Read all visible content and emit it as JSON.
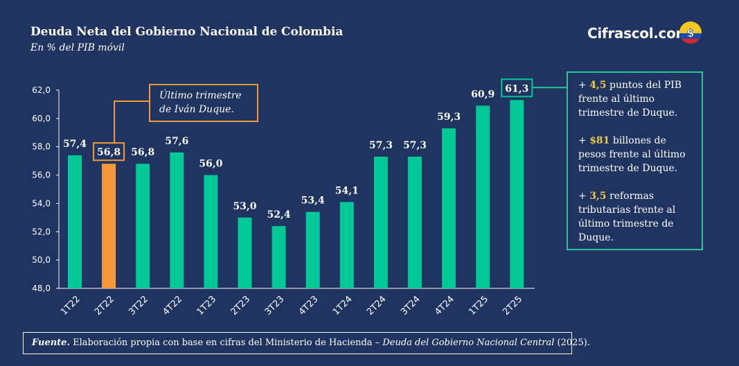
{
  "header": {
    "title": "Deuda Neta del Gobierno Nacional de Colombia",
    "subtitle": "En % del PIB móvil",
    "brand": "Cifrascol.com"
  },
  "colors": {
    "background": "#1f3461",
    "bar": "#00c896",
    "highlight_bar": "#f7993a",
    "highlight_text": "#f3c94a"
  },
  "chart_data": {
    "type": "bar",
    "title": "Deuda Neta del Gobierno Nacional de Colombia",
    "subtitle": "En % del PIB móvil",
    "categories": [
      "1T22",
      "2T22",
      "3T22",
      "4T22",
      "1T23",
      "2T23",
      "3T23",
      "4T23",
      "1T24",
      "2T24",
      "3T24",
      "4T24",
      "1T25",
      "2T25"
    ],
    "values": [
      57.4,
      56.8,
      56.8,
      57.6,
      56.0,
      53.0,
      52.4,
      53.4,
      54.1,
      57.3,
      57.3,
      59.3,
      60.9,
      61.3
    ],
    "value_labels": [
      "57,4",
      "56,8",
      "56,8",
      "57,6",
      "56,0",
      "53,0",
      "52,4",
      "53,4",
      "54,1",
      "57,3",
      "57,3",
      "59,3",
      "60,9",
      "61,3"
    ],
    "highlight_index": 1,
    "boxed_label_indices": [
      1,
      13
    ],
    "ylim": [
      48,
      62
    ],
    "yticks": [
      48,
      50,
      52,
      54,
      56,
      58,
      60,
      62
    ],
    "ytick_labels": [
      "48,0",
      "50,0",
      "52,0",
      "54,0",
      "56,0",
      "58,0",
      "60,0",
      "62,0"
    ],
    "grid": false,
    "legend": "none"
  },
  "annotation": {
    "line1": "Último trimestre",
    "line2": "de Iván Duque."
  },
  "infobox": {
    "items": [
      {
        "prefix": "+ ",
        "highlight": "4,5",
        "text": " puntos del PIB frente al último trimestre de Duque."
      },
      {
        "prefix": "+ ",
        "highlight": "$81",
        "text": " billones de pesos frente al último trimestre de Duque."
      },
      {
        "prefix": "+ ",
        "highlight": "3,5",
        "text": " reformas tributarias frente al último trimestre de Duque."
      }
    ]
  },
  "source": {
    "label": "Fuente.",
    "text1": " Elaboración propia con base en cifras del Ministerio de Hacienda – ",
    "italic": "Deuda del Gobierno Nacional Central",
    "text2": " (2025)."
  }
}
